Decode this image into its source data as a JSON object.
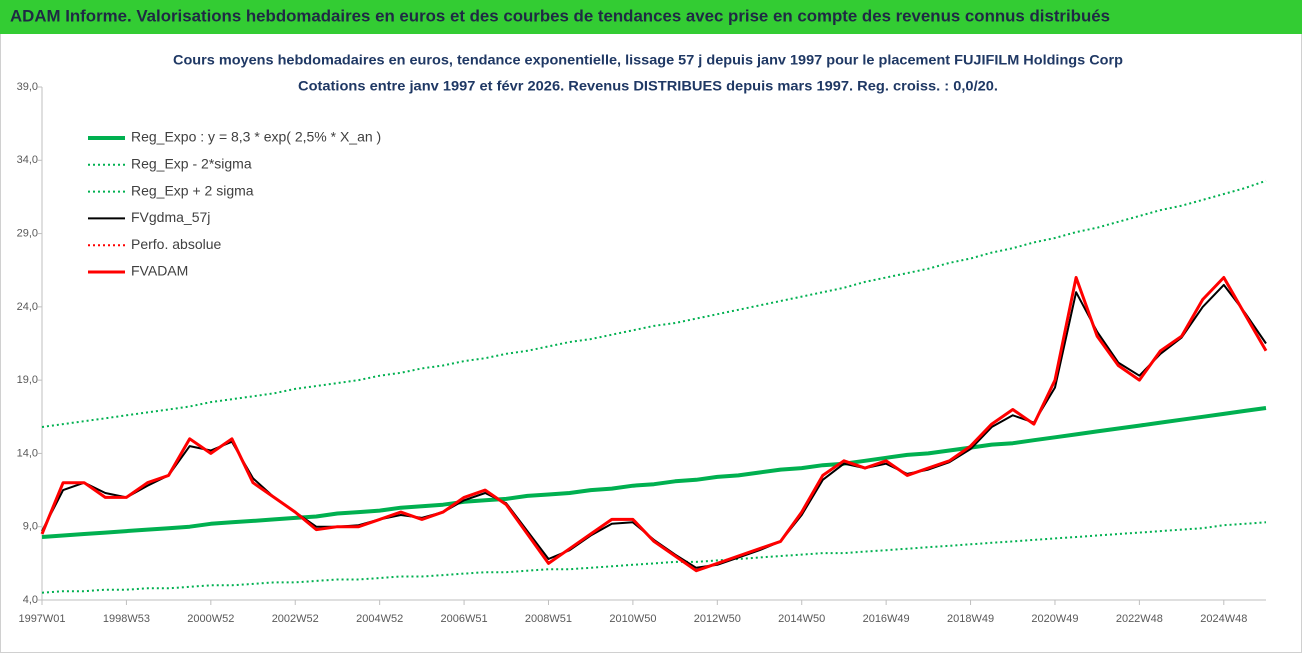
{
  "chart_data": {
    "type": "line",
    "header": "ADAM Informe. Valorisations hebdomadaires en euros et des courbes de tendances avec prise en compte des revenus connus distribués",
    "title": "Cours moyens hebdomadaires en euros, tendance exponentielle, lissage 57 j depuis janv 1997 pour le placement FUJIFILM Holdings Corp",
    "subtitle": "Cotations entre janv 1997 et févr 2026. Revenus DISTRIBUES depuis mars 1997. Reg. croiss. : 0,0/20.",
    "categories": [
      "1997W01",
      null,
      null,
      null,
      "1998W53",
      null,
      null,
      null,
      "2000W52",
      null,
      null,
      null,
      "2002W52",
      null,
      null,
      null,
      "2004W52",
      null,
      null,
      null,
      "2006W51",
      null,
      null,
      null,
      "2008W51",
      null,
      null,
      null,
      "2010W50",
      null,
      null,
      null,
      "2012W50",
      null,
      null,
      null,
      "2014W50",
      null,
      null,
      null,
      "2016W49",
      null,
      null,
      null,
      "2018W49",
      null,
      null,
      null,
      "2020W49",
      null,
      null,
      null,
      "2022W48",
      null,
      null,
      null,
      "2024W48",
      null,
      null
    ],
    "ylim": [
      4.0,
      39.0
    ],
    "yticks": [
      {
        "value": 4.0,
        "label": "4,0"
      },
      {
        "value": 9.0,
        "label": "9,0"
      },
      {
        "value": 14.0,
        "label": "14,0"
      },
      {
        "value": 19.0,
        "label": "19,0"
      },
      {
        "value": 24.0,
        "label": "24,0"
      },
      {
        "value": 29.0,
        "label": "29,0"
      },
      {
        "value": 34.0,
        "label": "34,0"
      },
      {
        "value": 39.0,
        "label": "39,0"
      }
    ],
    "series": [
      {
        "name": "Reg_Expo : y = 8,3 * exp( 2,5% *  X_an )",
        "color": "#00b050",
        "style": "solid",
        "width": 4,
        "values": [
          8.3,
          8.4,
          8.5,
          8.6,
          8.7,
          8.8,
          8.9,
          9.0,
          9.2,
          9.3,
          9.4,
          9.5,
          9.6,
          9.7,
          9.9,
          10.0,
          10.1,
          10.3,
          10.4,
          10.5,
          10.7,
          10.8,
          10.9,
          11.1,
          11.2,
          11.3,
          11.5,
          11.6,
          11.8,
          11.9,
          12.1,
          12.2,
          12.4,
          12.5,
          12.7,
          12.9,
          13.0,
          13.2,
          13.3,
          13.5,
          13.7,
          13.9,
          14.0,
          14.2,
          14.4,
          14.6,
          14.7,
          14.9,
          15.1,
          15.3,
          15.5,
          15.7,
          15.9,
          16.1,
          16.3,
          16.5,
          16.7,
          16.9,
          17.1
        ]
      },
      {
        "name": "Reg_Exp - 2*sigma",
        "color": "#00b050",
        "style": "dotted",
        "width": 2,
        "values": [
          4.5,
          4.6,
          4.6,
          4.7,
          4.7,
          4.8,
          4.8,
          4.9,
          5.0,
          5.0,
          5.1,
          5.2,
          5.2,
          5.3,
          5.4,
          5.4,
          5.5,
          5.6,
          5.6,
          5.7,
          5.8,
          5.9,
          5.9,
          6.0,
          6.1,
          6.1,
          6.2,
          6.3,
          6.4,
          6.5,
          6.6,
          6.6,
          6.7,
          6.8,
          6.9,
          7.0,
          7.1,
          7.2,
          7.2,
          7.3,
          7.4,
          7.5,
          7.6,
          7.7,
          7.8,
          7.9,
          8.0,
          8.1,
          8.2,
          8.3,
          8.4,
          8.5,
          8.6,
          8.7,
          8.8,
          8.9,
          9.1,
          9.2,
          9.3
        ]
      },
      {
        "name": "Reg_Exp + 2 sigma",
        "color": "#00b050",
        "style": "dotted",
        "width": 2,
        "values": [
          15.8,
          16.0,
          16.2,
          16.4,
          16.6,
          16.8,
          17.0,
          17.2,
          17.5,
          17.7,
          17.9,
          18.1,
          18.4,
          18.6,
          18.8,
          19.0,
          19.3,
          19.5,
          19.8,
          20.0,
          20.3,
          20.5,
          20.8,
          21.0,
          21.3,
          21.6,
          21.8,
          22.1,
          22.4,
          22.7,
          22.9,
          23.2,
          23.5,
          23.8,
          24.1,
          24.4,
          24.7,
          25.0,
          25.3,
          25.7,
          26.0,
          26.3,
          26.6,
          27.0,
          27.3,
          27.7,
          28.0,
          28.4,
          28.7,
          29.1,
          29.4,
          29.8,
          30.2,
          30.6,
          30.9,
          31.3,
          31.7,
          32.1,
          32.6
        ]
      },
      {
        "name": "FVgdma_57j",
        "color": "#000000",
        "style": "solid",
        "width": 2,
        "values": [
          8.7,
          11.5,
          12.0,
          11.3,
          11.0,
          11.8,
          12.5,
          14.5,
          14.2,
          14.8,
          12.3,
          11.0,
          10.0,
          9.0,
          9.0,
          9.1,
          9.5,
          9.8,
          9.6,
          10.0,
          10.8,
          11.3,
          10.6,
          8.7,
          6.8,
          7.4,
          8.4,
          9.2,
          9.3,
          8.1,
          7.1,
          6.2,
          6.4,
          6.9,
          7.4,
          8.0,
          9.8,
          12.2,
          13.3,
          13.0,
          13.3,
          12.6,
          12.9,
          13.4,
          14.3,
          15.8,
          16.6,
          16.1,
          18.5,
          25.0,
          22.3,
          20.2,
          19.3,
          20.8,
          21.9,
          24.0,
          25.5,
          23.6,
          21.5
        ]
      },
      {
        "name": "Perfo. absolue",
        "color": "#ff0000",
        "style": "dotted",
        "width": 2,
        "values": [
          null,
          null,
          null,
          null,
          null,
          null,
          null,
          null,
          null,
          null,
          null,
          null,
          null,
          null,
          null,
          null,
          null,
          null,
          null,
          null,
          null,
          null,
          null,
          null,
          null,
          null,
          null,
          null,
          null,
          null,
          null,
          null,
          null,
          null,
          null,
          null,
          null,
          null,
          null,
          null,
          null,
          null,
          null,
          null,
          null,
          null,
          null,
          null,
          null,
          null,
          null,
          null,
          null,
          null,
          null,
          null,
          null,
          null,
          null
        ]
      },
      {
        "name": "FVADAM",
        "color": "#ff0000",
        "style": "solid",
        "width": 3,
        "values": [
          8.5,
          12.0,
          12.0,
          11.0,
          11.0,
          12.0,
          12.5,
          15.0,
          14.0,
          15.0,
          12.0,
          11.0,
          10.0,
          8.8,
          9.0,
          9.0,
          9.5,
          10.0,
          9.5,
          10.0,
          11.0,
          11.5,
          10.5,
          8.5,
          6.5,
          7.5,
          8.5,
          9.5,
          9.5,
          8.0,
          7.0,
          6.0,
          6.5,
          7.0,
          7.5,
          8.0,
          10.0,
          12.5,
          13.5,
          13.0,
          13.5,
          12.5,
          13.0,
          13.5,
          14.5,
          16.0,
          17.0,
          16.0,
          19.0,
          26.0,
          22.0,
          20.0,
          19.0,
          21.0,
          22.0,
          24.5,
          26.0,
          23.5,
          21.0
        ]
      }
    ]
  }
}
